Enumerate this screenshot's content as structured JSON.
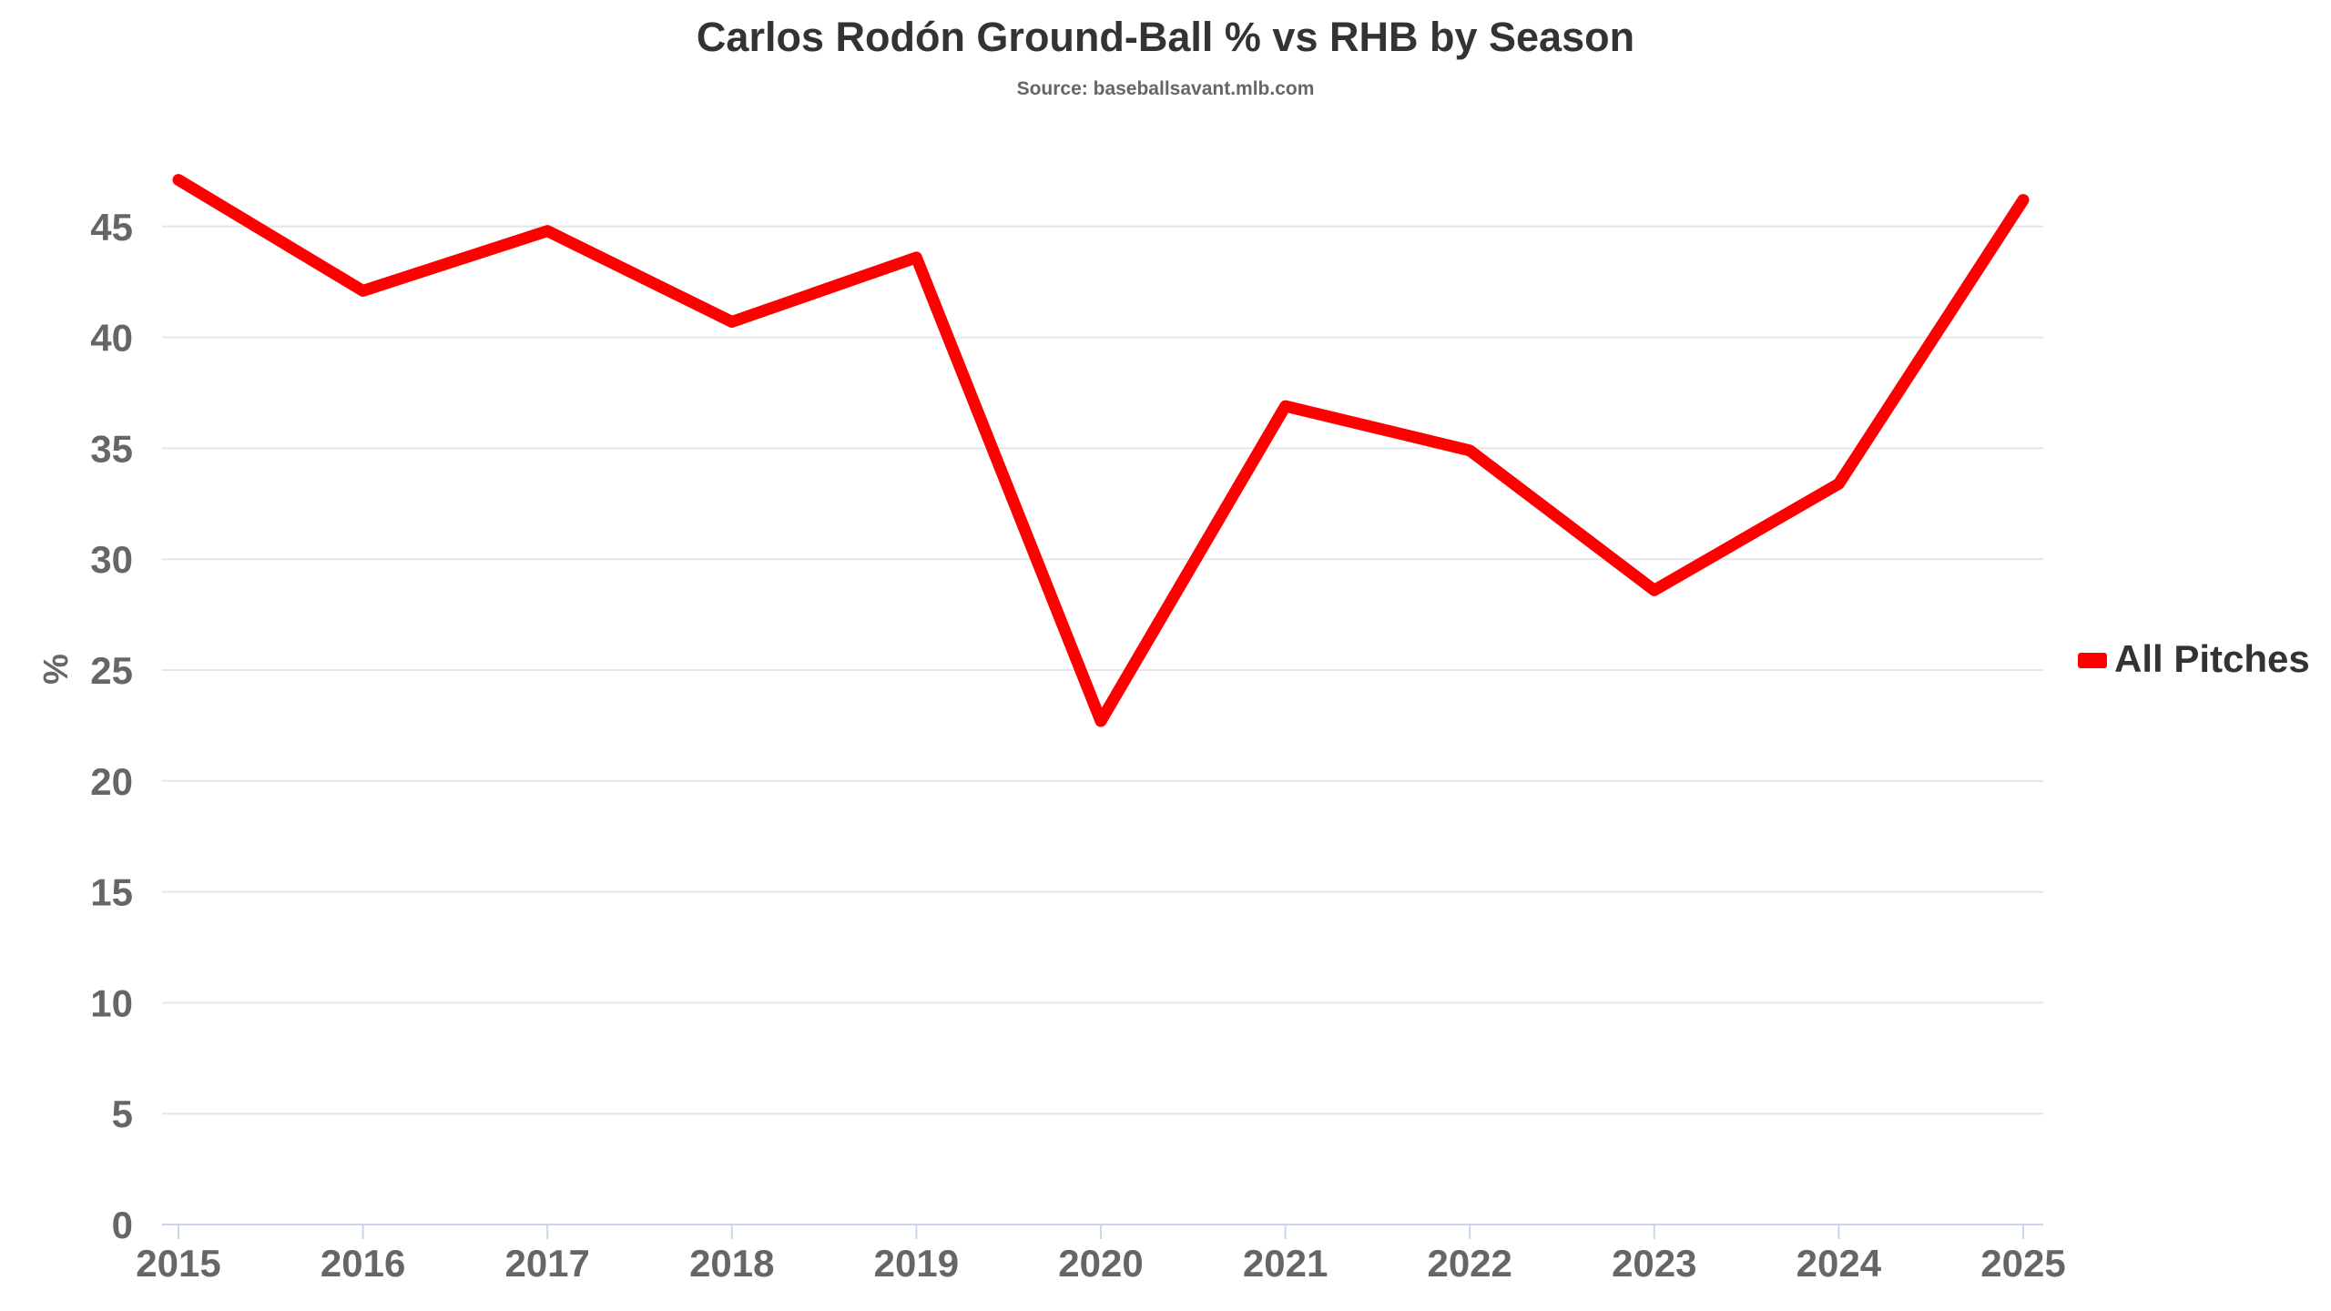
{
  "chart_data": {
    "type": "line",
    "title": "Carlos Rodón Ground-Ball % vs RHB by Season",
    "subtitle": "Source: baseballsavant.mlb.com",
    "xlabel": "",
    "ylabel": "%",
    "x": [
      "2015",
      "2016",
      "2017",
      "2018",
      "2019",
      "2020",
      "2021",
      "2022",
      "2023",
      "2024",
      "2025"
    ],
    "series": [
      {
        "name": "All Pitches",
        "color": "#ff0000",
        "values": [
          47.1,
          42.1,
          44.8,
          40.7,
          43.6,
          22.7,
          36.9,
          34.9,
          28.6,
          33.4,
          46.2
        ]
      }
    ],
    "ylim": [
      0,
      45
    ],
    "yticks": [
      0,
      5,
      10,
      15,
      20,
      25,
      30,
      35,
      40,
      45
    ],
    "grid": true,
    "legend_position": "right"
  }
}
